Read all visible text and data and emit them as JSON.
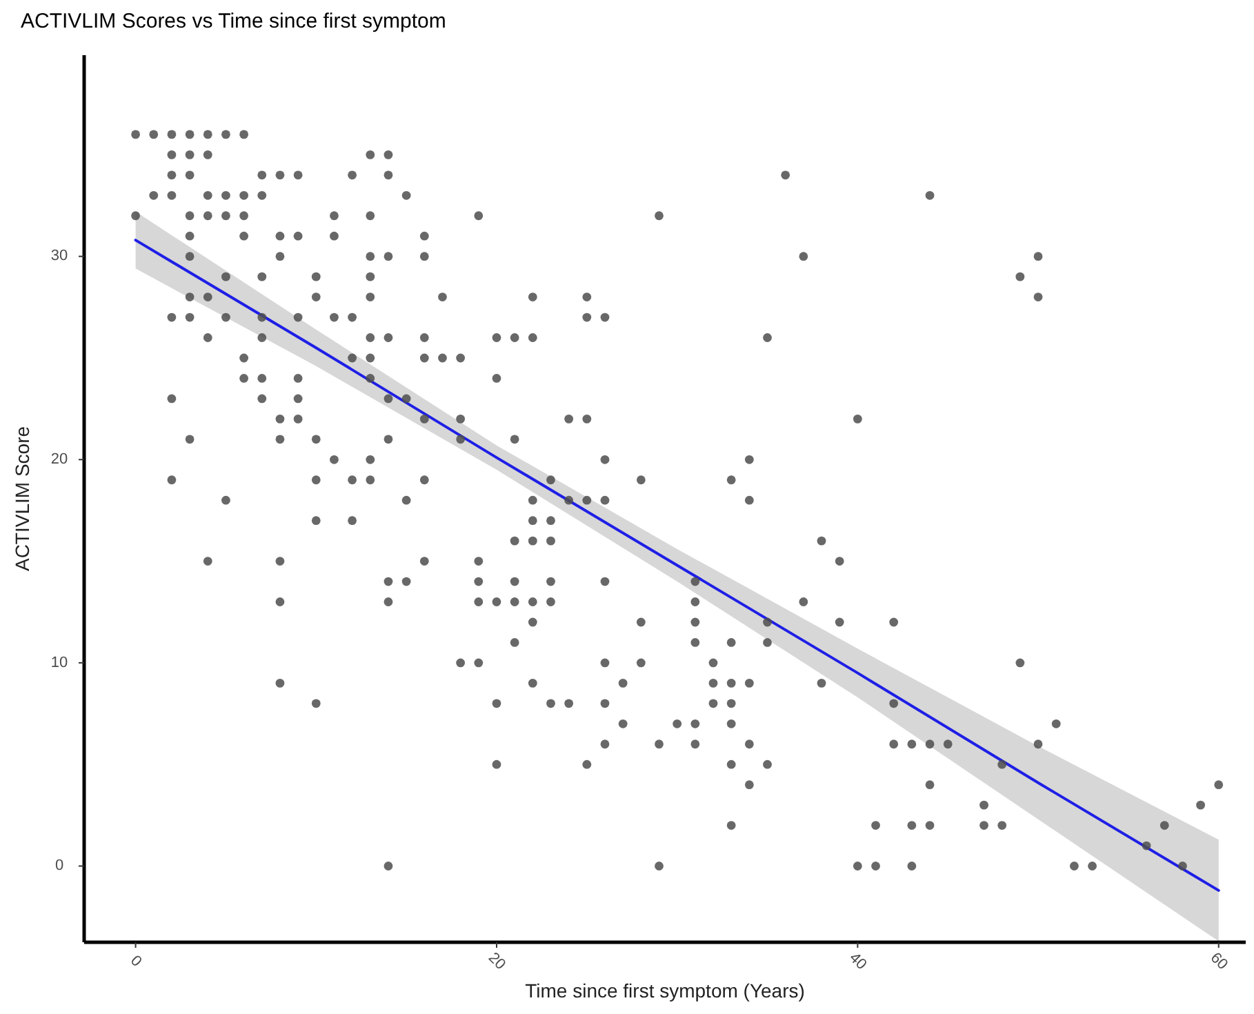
{
  "chart_data": {
    "type": "scatter",
    "title": "ACTIVLIM Scores vs Time since first symptom",
    "xlabel": "Time since first symptom (Years)",
    "ylabel": "ACTIVLIM Score",
    "xlim": [
      -2.85,
      61.5
    ],
    "ylim": [
      -3.75,
      39.9
    ],
    "xticks": [
      0,
      20,
      40,
      60
    ],
    "yticks": [
      0,
      10,
      20,
      30
    ],
    "marker": "circle",
    "series": [
      {
        "color": "#4d4d4d",
        "x": [
          0,
          1,
          2,
          3,
          4,
          5,
          6,
          2,
          3,
          4,
          13,
          14,
          2,
          3,
          7,
          8,
          9,
          12,
          14,
          36,
          1,
          2,
          4,
          5,
          6,
          7,
          15,
          44,
          0,
          3,
          4,
          5,
          6,
          11,
          13,
          19,
          29,
          3,
          6,
          8,
          9,
          11,
          16,
          3,
          8,
          13,
          14,
          16,
          37,
          50,
          5,
          7,
          10,
          13,
          49,
          3,
          4,
          10,
          13,
          17,
          22,
          25,
          50,
          2,
          3,
          5,
          7,
          9,
          11,
          12,
          25,
          26,
          4,
          7,
          13,
          14,
          16,
          20,
          21,
          22,
          35,
          6,
          12,
          13,
          16,
          17,
          18,
          6,
          7,
          9,
          13,
          20,
          2,
          7,
          9,
          14,
          15,
          8,
          9,
          16,
          18,
          24,
          25,
          40,
          3,
          8,
          10,
          14,
          18,
          21,
          11,
          13,
          26,
          34,
          2,
          10,
          12,
          13,
          16,
          23,
          28,
          33,
          5,
          15,
          22,
          24,
          25,
          26,
          34,
          10,
          12,
          22,
          23,
          21,
          22,
          23,
          38,
          4,
          8,
          16,
          19,
          39,
          14,
          15,
          19,
          21,
          23,
          26,
          31,
          8,
          14,
          19,
          20,
          21,
          22,
          23,
          31,
          37,
          22,
          28,
          31,
          35,
          39,
          42,
          21,
          31,
          33,
          35,
          18,
          19,
          26,
          28,
          32,
          49,
          8,
          22,
          27,
          32,
          33,
          34,
          38,
          10,
          20,
          23,
          24,
          26,
          32,
          33,
          42,
          27,
          30,
          31,
          33,
          51,
          26,
          29,
          31,
          34,
          42,
          43,
          44,
          45,
          50,
          20,
          25,
          33,
          35,
          48,
          34,
          44,
          60,
          47,
          59,
          33,
          41,
          43,
          44,
          47,
          48,
          57,
          56,
          14,
          29,
          40,
          41,
          43,
          52,
          53,
          58
        ],
        "values": [
          36,
          36,
          36,
          36,
          36,
          36,
          36,
          35,
          35,
          35,
          35,
          35,
          34,
          34,
          34,
          34,
          34,
          34,
          34,
          34,
          33,
          33,
          33,
          33,
          33,
          33,
          33,
          33,
          32,
          32,
          32,
          32,
          32,
          32,
          32,
          32,
          32,
          31,
          31,
          31,
          31,
          31,
          31,
          30,
          30,
          30,
          30,
          30,
          30,
          30,
          29,
          29,
          29,
          29,
          29,
          28,
          28,
          28,
          28,
          28,
          28,
          28,
          28,
          27,
          27,
          27,
          27,
          27,
          27,
          27,
          27,
          27,
          26,
          26,
          26,
          26,
          26,
          26,
          26,
          26,
          26,
          25,
          25,
          25,
          25,
          25,
          25,
          24,
          24,
          24,
          24,
          24,
          23,
          23,
          23,
          23,
          23,
          22,
          22,
          22,
          22,
          22,
          22,
          22,
          21,
          21,
          21,
          21,
          21,
          21,
          20,
          20,
          20,
          20,
          19,
          19,
          19,
          19,
          19,
          19,
          19,
          19,
          18,
          18,
          18,
          18,
          18,
          18,
          18,
          17,
          17,
          17,
          17,
          16,
          16,
          16,
          16,
          15,
          15,
          15,
          15,
          15,
          14,
          14,
          14,
          14,
          14,
          14,
          14,
          13,
          13,
          13,
          13,
          13,
          13,
          13,
          13,
          13,
          12,
          12,
          12,
          12,
          12,
          12,
          11,
          11,
          11,
          11,
          10,
          10,
          10,
          10,
          10,
          10,
          9,
          9,
          9,
          9,
          9,
          9,
          9,
          8,
          8,
          8,
          8,
          8,
          8,
          8,
          8,
          7,
          7,
          7,
          7,
          7,
          6,
          6,
          6,
          6,
          6,
          6,
          6,
          6,
          6,
          5,
          5,
          5,
          5,
          5,
          4,
          4,
          4,
          3,
          3,
          2,
          2,
          2,
          2,
          2,
          2,
          2,
          1,
          0,
          0,
          0,
          0,
          0,
          0,
          0,
          0
        ]
      },
      {
        "type": "line",
        "marker": "none",
        "color": "#1f1fe6",
        "x": [
          0,
          10,
          20,
          30,
          40,
          50,
          60
        ],
        "values": [
          30.8,
          25.5,
          20.1,
          14.8,
          9.5,
          4.1,
          -1.2
        ],
        "lower": [
          29.4,
          24.6,
          19.5,
          14.0,
          8.3,
          2.3,
          -3.7
        ],
        "upper": [
          32.2,
          26.4,
          20.7,
          15.6,
          10.7,
          5.9,
          1.3
        ]
      }
    ]
  }
}
